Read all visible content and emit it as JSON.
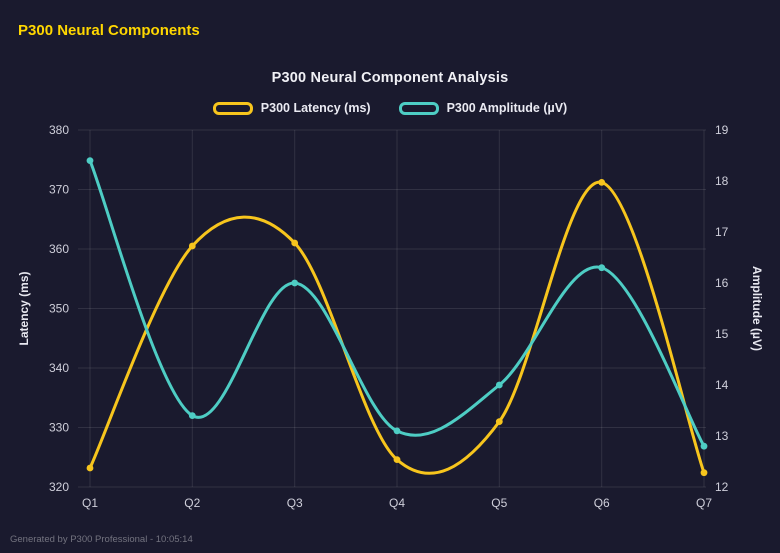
{
  "page": {
    "title": "P300 Neural Components",
    "footer": "Generated by P300 Professional - 10:05:14"
  },
  "chart_data": {
    "type": "line",
    "title": "P300 Neural Component Analysis",
    "categories": [
      "Q1",
      "Q2",
      "Q3",
      "Q4",
      "Q5",
      "Q6",
      "Q7"
    ],
    "series": [
      {
        "name": "P300 Latency (ms)",
        "axis": "left",
        "color": "#f7c51d",
        "values": [
          323.2,
          360.5,
          361.0,
          324.6,
          331.0,
          371.2,
          322.4
        ]
      },
      {
        "name": "P300 Amplitude (µV)",
        "axis": "right",
        "color": "#4ecdc4",
        "values": [
          18.4,
          13.4,
          16.0,
          13.1,
          14.0,
          16.3,
          12.8
        ]
      }
    ],
    "left_axis": {
      "label": "Latency (ms)",
      "min": 320,
      "max": 380,
      "ticks": [
        320,
        330,
        340,
        350,
        360,
        370,
        380
      ]
    },
    "right_axis": {
      "label": "Amplitude (µV)",
      "min": 12,
      "max": 19,
      "ticks": [
        12,
        13,
        14,
        15,
        16,
        17,
        18,
        19
      ]
    },
    "grid": true,
    "legend_position": "top",
    "colors": {
      "background": "#1a1a2e",
      "grid": "rgba(255,255,255,0.10)",
      "tick_text": "#cfcfda",
      "title_text": "#f0f0f5",
      "header_accent": "#ffd700"
    }
  }
}
